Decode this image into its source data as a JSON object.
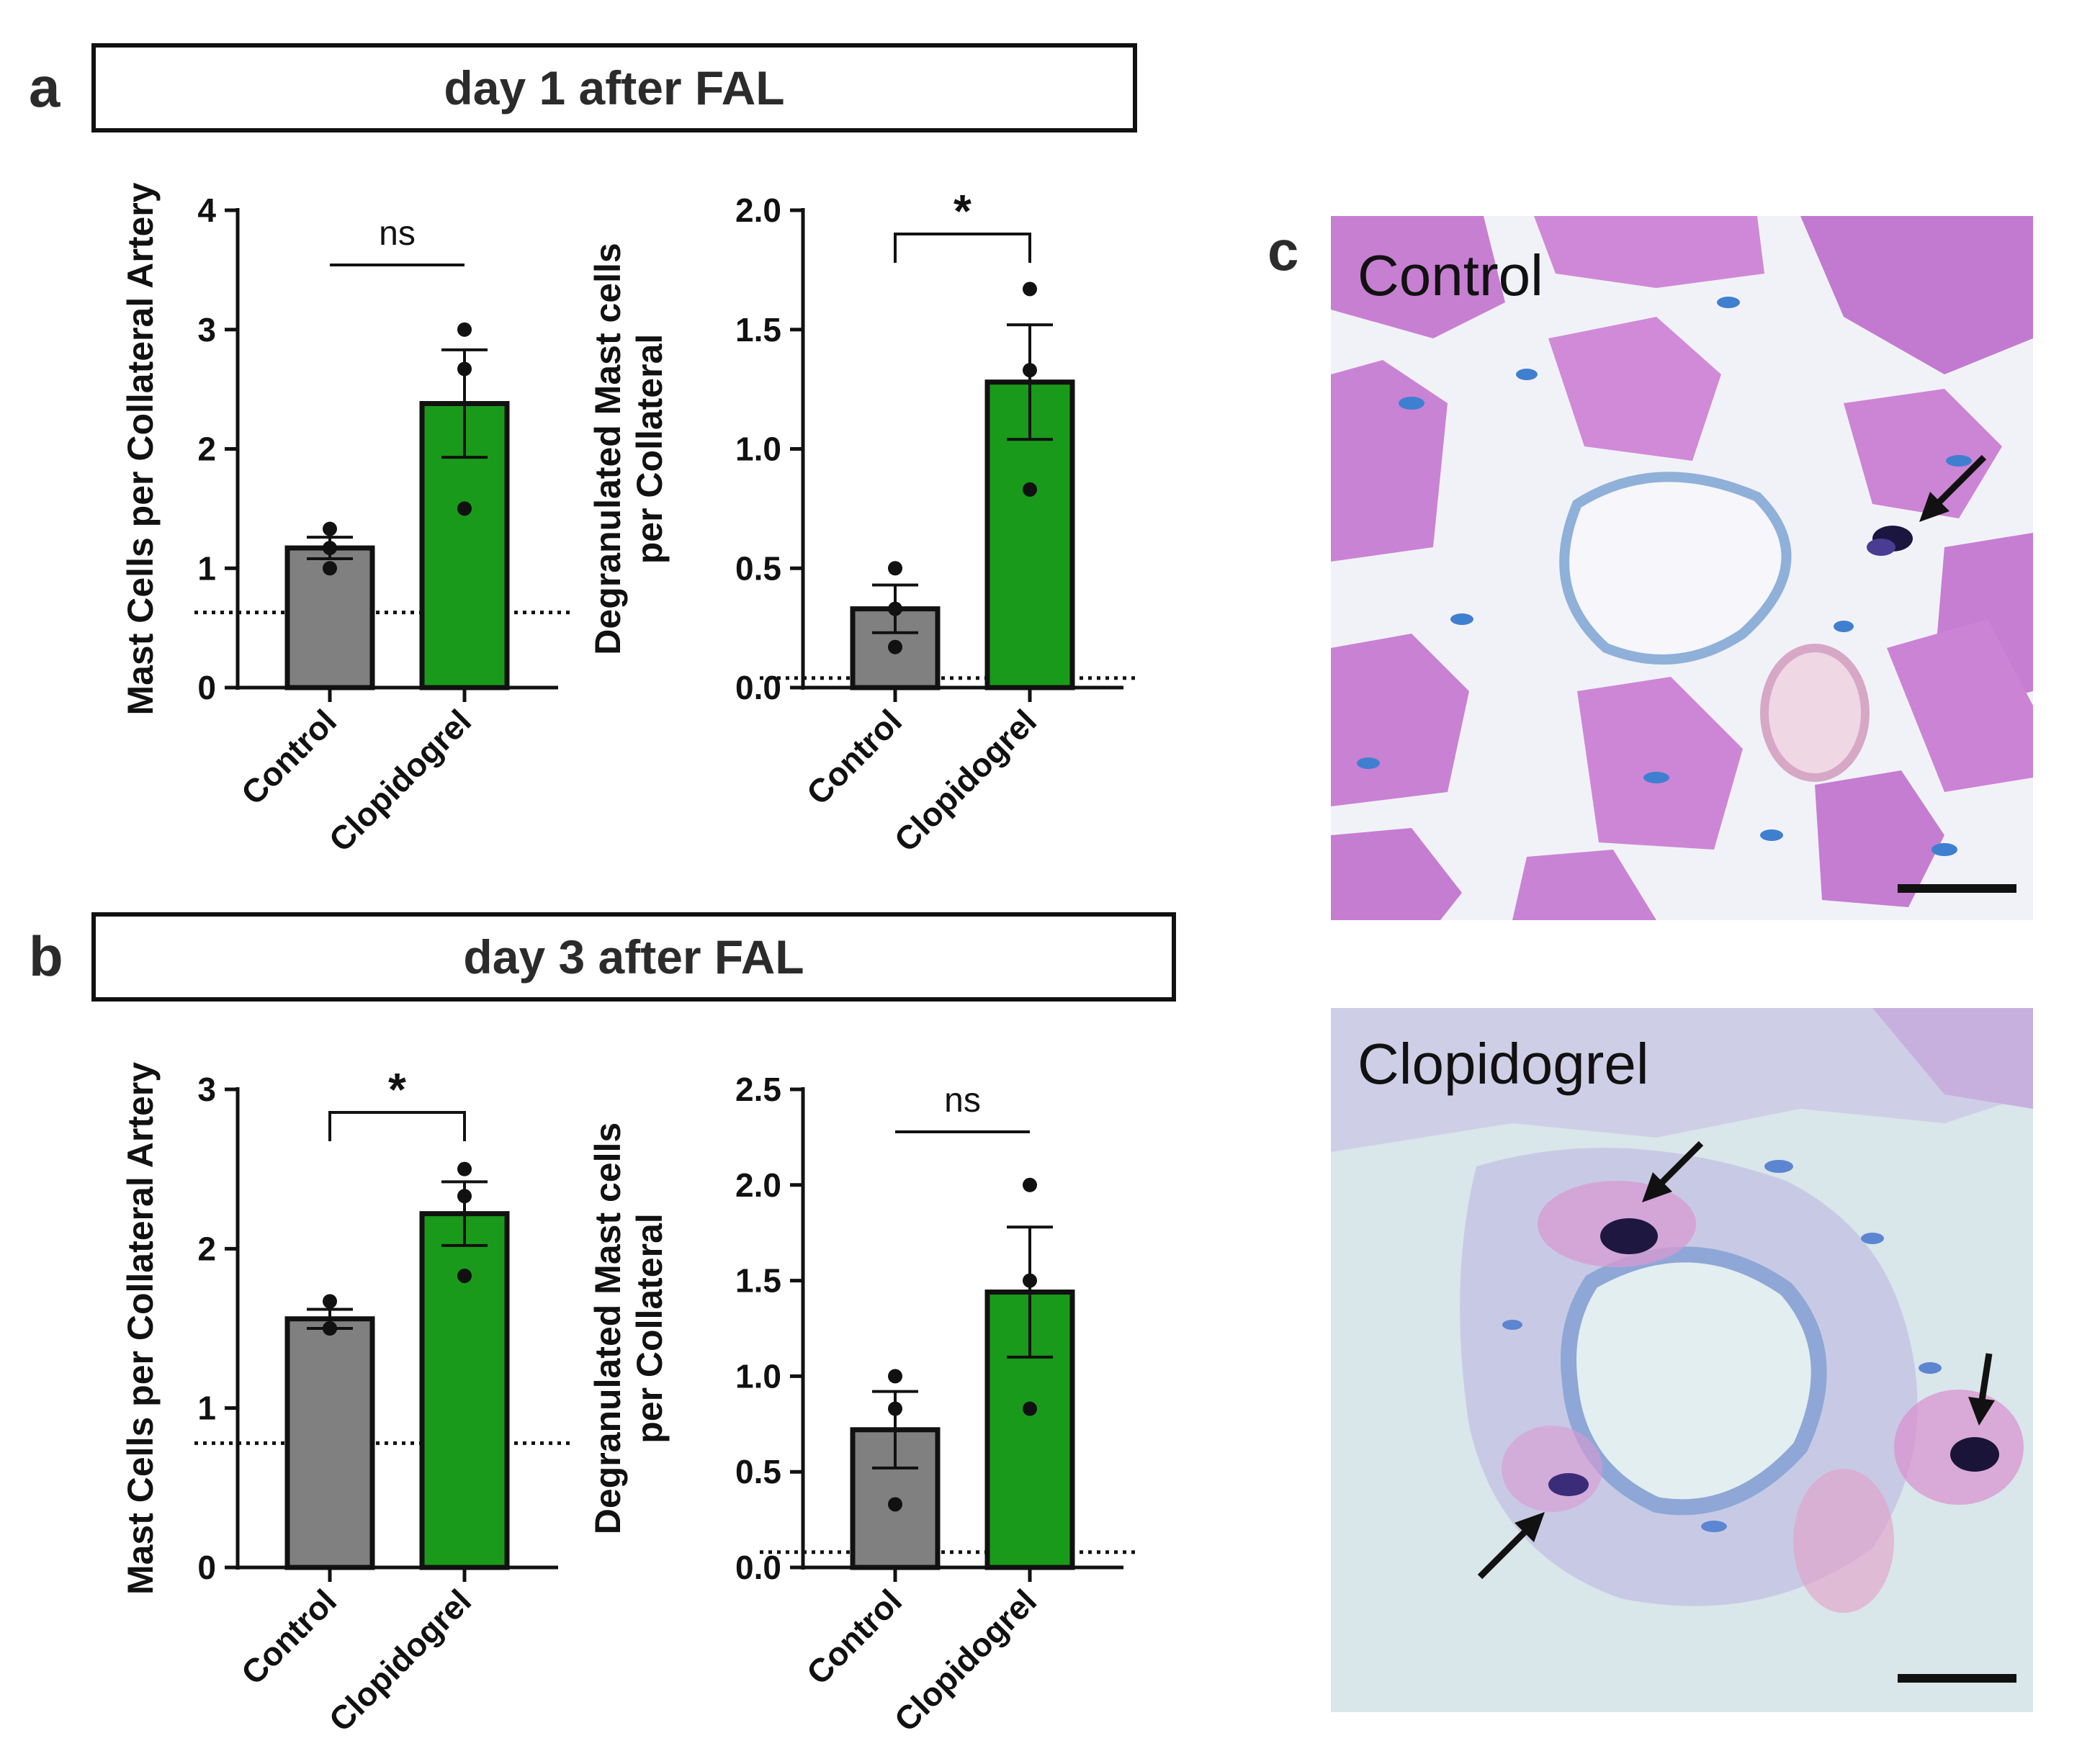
{
  "panel_letters": {
    "a": "a",
    "b": "b",
    "c": "c"
  },
  "headers": {
    "a": "day 1 after FAL",
    "b": "day 3 after FAL"
  },
  "colors": {
    "control": "#808080",
    "clopidogrel": "#1a9a1a",
    "axis": "#111111"
  },
  "chart_data": [
    {
      "id": "a-left",
      "type": "bar",
      "categories": [
        "Control",
        "Clopidogrel"
      ],
      "values": [
        1.17,
        2.38
      ],
      "sem": [
        0.09,
        0.45
      ],
      "points": [
        [
          1.33,
          1.17,
          1.0
        ],
        [
          3.0,
          2.67,
          1.5
        ]
      ],
      "ylabel": "Mast Cells per Collateral Artery",
      "ylim": [
        0,
        4
      ],
      "yticks": [
        0,
        1,
        2,
        3,
        4
      ],
      "ytick_labels": [
        "0",
        "1",
        "2",
        "3",
        "4"
      ],
      "baseline": 0.63,
      "significance": {
        "label": "ns",
        "style": "line"
      }
    },
    {
      "id": "a-right",
      "type": "bar",
      "categories": [
        "Control",
        "Clopidogrel"
      ],
      "values": [
        0.33,
        1.28
      ],
      "sem": [
        0.1,
        0.24
      ],
      "points": [
        [
          0.5,
          0.33,
          0.17
        ],
        [
          1.67,
          1.33,
          0.83
        ]
      ],
      "ylabel": [
        "Degranulated Mast cells",
        "per Collateral"
      ],
      "ylim": [
        0,
        2.0
      ],
      "yticks": [
        0,
        0.5,
        1.0,
        1.5,
        2.0
      ],
      "ytick_labels": [
        "0.0",
        "0.5",
        "1.0",
        "1.5",
        "2.0"
      ],
      "baseline": 0.04,
      "significance": {
        "label": "*",
        "style": "bracket"
      }
    },
    {
      "id": "b-left",
      "type": "bar",
      "categories": [
        "Control",
        "Clopidogrel"
      ],
      "values": [
        1.56,
        2.22
      ],
      "sem": [
        0.06,
        0.2
      ],
      "points": [
        [
          1.67,
          1.5,
          1.5
        ],
        [
          2.5,
          2.33,
          1.83
        ]
      ],
      "ylabel": "Mast Cells per Collateral Artery",
      "ylim": [
        0,
        3
      ],
      "yticks": [
        0,
        1,
        2,
        3
      ],
      "ytick_labels": [
        "0",
        "1",
        "2",
        "3"
      ],
      "baseline": 0.78,
      "significance": {
        "label": "*",
        "style": "bracket"
      }
    },
    {
      "id": "b-right",
      "type": "bar",
      "categories": [
        "Control",
        "Clopidogrel"
      ],
      "values": [
        0.72,
        1.44
      ],
      "sem": [
        0.2,
        0.34
      ],
      "points": [
        [
          1.0,
          0.83,
          0.33
        ],
        [
          2.0,
          1.5,
          0.83
        ]
      ],
      "ylabel": [
        "Degranulated Mast cells",
        "per Collateral"
      ],
      "ylim": [
        0,
        2.5
      ],
      "yticks": [
        0,
        0.5,
        1.0,
        1.5,
        2.0,
        2.5
      ],
      "ytick_labels": [
        "0.0",
        "0.5",
        "1.0",
        "1.5",
        "2.0",
        "2.5"
      ],
      "baseline": 0.08,
      "significance": {
        "label": "ns",
        "style": "line"
      }
    }
  ],
  "micrographs": {
    "top_label": "Control",
    "bottom_label": "Clopidogrel"
  }
}
